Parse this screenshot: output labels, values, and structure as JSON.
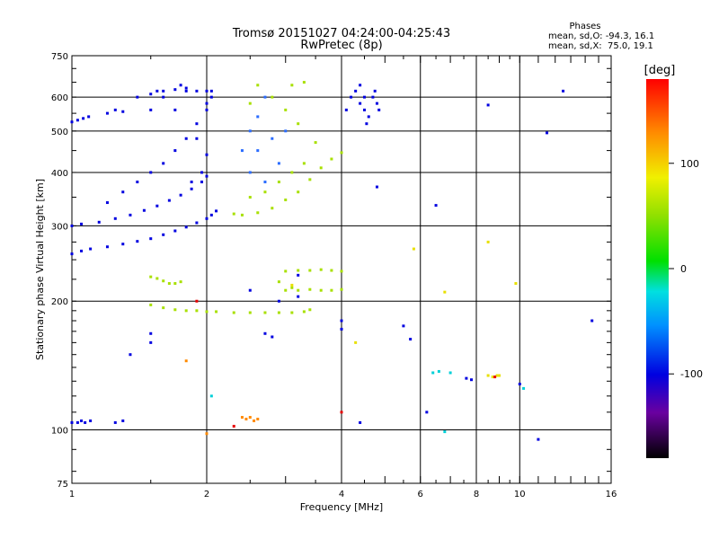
{
  "chart_data": {
    "type": "scatter",
    "title": "Tromsø 20151027 04:24:00-04:25:43",
    "subtitle": "RwPretec (8p)",
    "xlabel": "Frequency [MHz]",
    "ylabel": "Stationary phase Virtual Height [km]",
    "x_scale": "log",
    "y_scale": "log",
    "xlim": [
      1,
      16
    ],
    "ylim": [
      75,
      750
    ],
    "x_ticks": [
      1,
      2,
      4,
      6,
      8,
      10,
      16
    ],
    "x_tick_labels": [
      "1",
      "2",
      "4",
      "6",
      "8",
      "10",
      "16"
    ],
    "y_ticks": [
      75,
      100,
      200,
      300,
      400,
      500,
      600,
      750
    ],
    "y_tick_labels": [
      "75",
      "100",
      "200",
      "300",
      "400",
      "500",
      "600",
      "750"
    ],
    "grid": true,
    "phases_box": {
      "title": "Phases",
      "line_o": "mean, sd,O: -94.3, 16.1",
      "line_x": "mean, sd,X:  75.0, 19.1"
    },
    "colorbar": {
      "unit": "[deg]",
      "range": [
        -180,
        180
      ],
      "ticks": [
        100,
        0,
        -100
      ],
      "tick_labels": [
        "100",
        "0",
        "-100"
      ]
    },
    "colors": {
      "deep_blue": "#0000e0",
      "light_blue": "#2a6cff",
      "cyan": "#00d0d8",
      "green": "#2ad02a",
      "yellow_green": "#a8e000",
      "yellow": "#e8e000",
      "orange": "#ff8a00",
      "red": "#e80000"
    },
    "series": [
      {
        "description": "lower F-layer O trace",
        "color": "deep_blue",
        "points": [
          [
            1.0,
            258
          ],
          [
            1.05,
            262
          ],
          [
            1.1,
            265
          ],
          [
            1.2,
            268
          ],
          [
            1.3,
            272
          ],
          [
            1.4,
            276
          ],
          [
            1.5,
            280
          ],
          [
            1.6,
            286
          ],
          [
            1.7,
            292
          ],
          [
            1.8,
            298
          ],
          [
            1.9,
            305
          ],
          [
            2.0,
            312
          ],
          [
            2.05,
            318
          ],
          [
            2.1,
            325
          ]
        ]
      },
      {
        "description": "upper F-layer O trace",
        "color": "deep_blue",
        "points": [
          [
            1.0,
            300
          ],
          [
            1.05,
            303
          ],
          [
            1.15,
            306
          ],
          [
            1.25,
            312
          ],
          [
            1.35,
            318
          ],
          [
            1.45,
            326
          ],
          [
            1.55,
            334
          ],
          [
            1.65,
            344
          ],
          [
            1.75,
            354
          ],
          [
            1.85,
            366
          ],
          [
            1.95,
            380
          ],
          [
            2.0,
            392
          ]
        ]
      },
      {
        "description": "O-mode F region cloud",
        "color": "deep_blue",
        "points": [
          [
            1.2,
            340
          ],
          [
            1.3,
            360
          ],
          [
            1.4,
            380
          ],
          [
            1.5,
            400
          ],
          [
            1.6,
            420
          ],
          [
            1.7,
            450
          ],
          [
            1.8,
            480
          ],
          [
            1.9,
            520
          ],
          [
            2.0,
            560
          ],
          [
            2.05,
            600
          ],
          [
            1.8,
            620
          ],
          [
            1.6,
            600
          ],
          [
            1.5,
            560
          ],
          [
            1.7,
            560
          ],
          [
            1.9,
            480
          ],
          [
            2.0,
            440
          ],
          [
            1.95,
            400
          ],
          [
            1.85,
            380
          ],
          [
            2.0,
            620
          ],
          [
            1.75,
            640
          ],
          [
            1.55,
            620
          ]
        ]
      },
      {
        "description": "high blue band upper left",
        "color": "deep_blue",
        "points": [
          [
            1.0,
            525
          ],
          [
            1.03,
            530
          ],
          [
            1.06,
            535
          ],
          [
            1.09,
            540
          ],
          [
            1.2,
            550
          ],
          [
            1.25,
            560
          ],
          [
            1.3,
            555
          ],
          [
            1.4,
            600
          ],
          [
            1.5,
            610
          ],
          [
            1.6,
            620
          ],
          [
            1.7,
            625
          ],
          [
            1.8,
            630
          ],
          [
            1.9,
            620
          ],
          [
            2.05,
            620
          ],
          [
            2.0,
            580
          ]
        ]
      },
      {
        "description": "X-mode F region",
        "color": "yellow_green",
        "points": [
          [
            2.3,
            320
          ],
          [
            2.4,
            318
          ],
          [
            2.6,
            322
          ],
          [
            2.8,
            330
          ],
          [
            3.0,
            345
          ],
          [
            3.2,
            360
          ],
          [
            3.4,
            385
          ],
          [
            3.6,
            410
          ],
          [
            3.8,
            430
          ],
          [
            4.0,
            445
          ],
          [
            3.5,
            470
          ],
          [
            3.3,
            420
          ],
          [
            3.1,
            400
          ],
          [
            2.9,
            380
          ],
          [
            2.7,
            360
          ],
          [
            2.5,
            350
          ],
          [
            3.2,
            520
          ],
          [
            3.0,
            560
          ],
          [
            2.8,
            600
          ],
          [
            3.1,
            640
          ],
          [
            3.3,
            650
          ],
          [
            2.6,
            640
          ],
          [
            2.5,
            580
          ]
        ]
      },
      {
        "description": "mixed phase cloud middle",
        "color": "light_blue",
        "points": [
          [
            2.4,
            450
          ],
          [
            2.5,
            500
          ],
          [
            2.6,
            540
          ],
          [
            2.7,
            600
          ],
          [
            2.8,
            480
          ],
          [
            2.9,
            420
          ],
          [
            3.0,
            500
          ],
          [
            2.5,
            400
          ],
          [
            2.7,
            380
          ],
          [
            2.6,
            450
          ]
        ]
      },
      {
        "description": "blue spur near 4-5 MHz",
        "color": "deep_blue",
        "points": [
          [
            4.1,
            560
          ],
          [
            4.2,
            600
          ],
          [
            4.3,
            620
          ],
          [
            4.4,
            580
          ],
          [
            4.5,
            560
          ],
          [
            4.55,
            520
          ],
          [
            4.6,
            540
          ],
          [
            4.5,
            600
          ],
          [
            4.4,
            640
          ],
          [
            4.7,
            600
          ],
          [
            4.8,
            580
          ],
          [
            4.75,
            620
          ],
          [
            4.85,
            560
          ]
        ]
      },
      {
        "description": "E-layer O echo line",
        "color": "yellow_green",
        "points": [
          [
            1.5,
            196
          ],
          [
            1.6,
            193
          ],
          [
            1.7,
            191
          ],
          [
            1.8,
            190
          ],
          [
            1.9,
            190
          ],
          [
            2.0,
            189
          ],
          [
            2.1,
            189
          ],
          [
            2.3,
            188
          ],
          [
            2.5,
            188
          ],
          [
            2.7,
            188
          ],
          [
            2.9,
            188
          ],
          [
            3.1,
            188
          ],
          [
            3.3,
            189
          ],
          [
            3.4,
            191
          ]
        ]
      },
      {
        "description": "E/F echo band",
        "color": "yellow_green",
        "points": [
          [
            1.5,
            228
          ],
          [
            1.55,
            226
          ],
          [
            1.6,
            223
          ],
          [
            1.65,
            220
          ],
          [
            1.7,
            220
          ],
          [
            1.75,
            222
          ],
          [
            3.0,
            235
          ],
          [
            3.2,
            236
          ],
          [
            3.4,
            236
          ],
          [
            3.6,
            237
          ],
          [
            3.8,
            236
          ],
          [
            4.0,
            235
          ],
          [
            3.0,
            212
          ],
          [
            3.2,
            212
          ],
          [
            3.4,
            213
          ],
          [
            3.6,
            212
          ],
          [
            3.8,
            212
          ],
          [
            4.0,
            213
          ],
          [
            2.9,
            222
          ],
          [
            3.1,
            215
          ]
        ]
      },
      {
        "description": "low Es echoes",
        "color": "deep_blue",
        "points": [
          [
            1.0,
            104
          ],
          [
            1.03,
            104
          ],
          [
            1.05,
            105
          ],
          [
            1.07,
            104
          ],
          [
            1.1,
            105
          ],
          [
            1.25,
            104
          ],
          [
            1.3,
            105
          ]
        ]
      },
      {
        "description": "low orange echoes",
        "color": "orange",
        "points": [
          [
            2.4,
            107
          ],
          [
            2.45,
            106
          ],
          [
            2.5,
            107
          ],
          [
            2.55,
            105
          ],
          [
            2.6,
            106
          ],
          [
            1.8,
            145
          ],
          [
            2.0,
            98
          ]
        ]
      },
      {
        "description": "scattered blue echoes",
        "color": "deep_blue",
        "points": [
          [
            4.0,
            180
          ],
          [
            4.0,
            172
          ],
          [
            5.5,
            175
          ],
          [
            5.7,
            163
          ],
          [
            4.4,
            104
          ],
          [
            1.35,
            150
          ],
          [
            1.5,
            168
          ],
          [
            1.5,
            160
          ],
          [
            2.7,
            168
          ],
          [
            2.8,
            165
          ],
          [
            3.2,
            230
          ],
          [
            2.5,
            212
          ],
          [
            3.2,
            205
          ],
          [
            2.9,
            200
          ],
          [
            4.8,
            370
          ],
          [
            6.5,
            335
          ],
          [
            6.2,
            110
          ],
          [
            7.6,
            132
          ],
          [
            7.8,
            131
          ],
          [
            14.5,
            180
          ],
          [
            12.5,
            620
          ],
          [
            11.5,
            495
          ],
          [
            8.5,
            575
          ],
          [
            11.0,
            95
          ],
          [
            10.0,
            128
          ]
        ]
      },
      {
        "description": "cyan echoes",
        "color": "cyan",
        "points": [
          [
            6.4,
            136
          ],
          [
            6.6,
            137
          ],
          [
            7.0,
            136
          ],
          [
            6.8,
            99
          ],
          [
            2.05,
            120
          ],
          [
            10.2,
            125
          ]
        ]
      },
      {
        "description": "green/yellow scattered echoes",
        "color": "yellow",
        "points": [
          [
            8.5,
            134
          ],
          [
            8.7,
            133
          ],
          [
            8.9,
            134
          ],
          [
            9.0,
            134
          ],
          [
            8.5,
            275
          ],
          [
            9.8,
            220
          ],
          [
            6.8,
            210
          ],
          [
            5.8,
            265
          ],
          [
            4.3,
            160
          ],
          [
            3.1,
            218
          ]
        ]
      },
      {
        "description": "red/orange echoes",
        "color": "red",
        "points": [
          [
            4.0,
            110
          ],
          [
            1.9,
            200
          ],
          [
            8.8,
            133
          ],
          [
            2.3,
            102
          ]
        ]
      }
    ]
  }
}
